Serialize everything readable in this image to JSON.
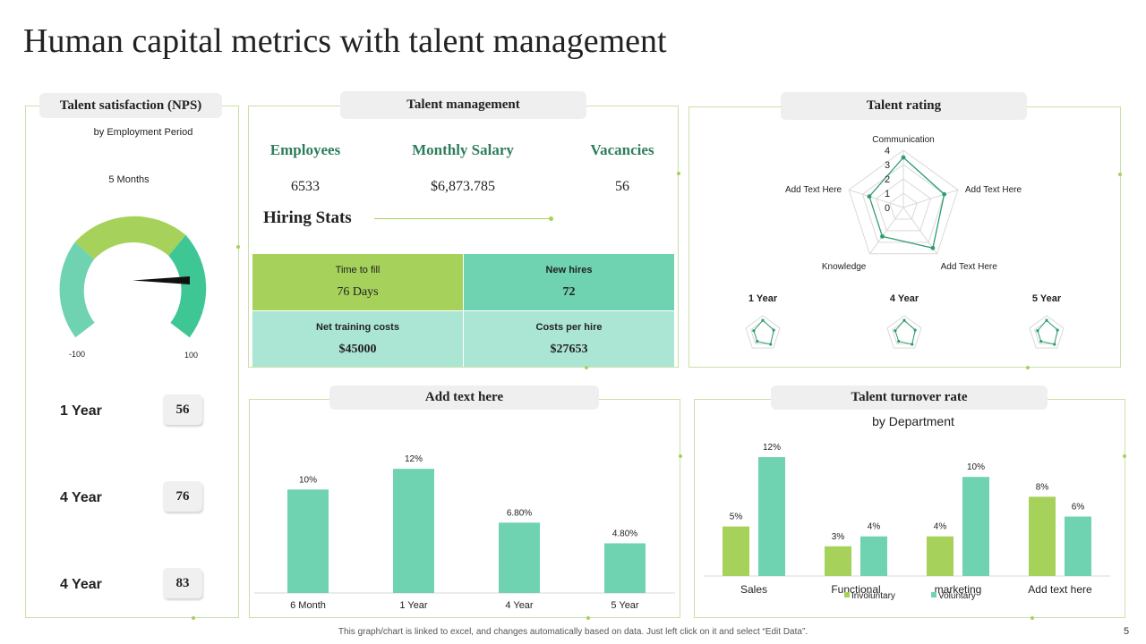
{
  "title": "Human capital metrics with talent management",
  "colors": {
    "green": "#a6d15a",
    "teal": "#6fd3b1",
    "light_teal": "#abe5d3",
    "dark_green": "#2e7d5b",
    "border": "#c9e0a8"
  },
  "nps": {
    "title": "Talent satisfaction (NPS)",
    "subtitle": "by Employment  Period",
    "gauge_label": "5 Months",
    "min_label": "-100",
    "max_label": "100",
    "years": [
      {
        "label": "1 Year",
        "value": "56"
      },
      {
        "label": "4 Year",
        "value": "76"
      },
      {
        "label": "4 Year",
        "value": "83"
      }
    ]
  },
  "talent_mgmt": {
    "title": "Talent management",
    "metrics": [
      {
        "head": "Employees",
        "value": "6533"
      },
      {
        "head": "Monthly Salary",
        "value": "$6,873.785"
      },
      {
        "head": "Vacancies",
        "value": "56"
      }
    ],
    "hiring_title": "Hiring Stats",
    "cells": [
      {
        "label": "Time to fill",
        "value": "76 Days"
      },
      {
        "label": "New hires",
        "value": "72"
      },
      {
        "label": "Net training costs",
        "value": "$45000"
      },
      {
        "label": "Costs per hire",
        "value": "$27653"
      }
    ]
  },
  "rating": {
    "title": "Talent rating",
    "axes": [
      "Communication",
      "Add Text Here",
      "Add Text Here",
      "Knowledge",
      "Add Text Here"
    ],
    "ticks": [
      "0",
      "1",
      "2",
      "3",
      "4"
    ],
    "mini_labels": [
      "1 Year",
      "4 Year",
      "5 Year"
    ]
  },
  "turnover": {
    "title": "Talent turnover rate",
    "subtitle": "by Department"
  },
  "bar_panel": {
    "title": "Add text here"
  },
  "chart_data": [
    {
      "type": "radar",
      "title": "Talent rating",
      "categories": [
        "Communication",
        "Add Text Here",
        "Add Text Here",
        "Knowledge",
        "Add Text Here"
      ],
      "values": [
        3.5,
        3,
        3.5,
        2.5,
        2.5
      ],
      "rmax": 4
    },
    {
      "type": "bar",
      "title": "Add text here",
      "categories": [
        "6 Month",
        "1 Year",
        "4 Year",
        "5 Year"
      ],
      "values": [
        10,
        12,
        6.8,
        4.8
      ],
      "value_labels": [
        "10%",
        "12%",
        "6.80%",
        "4.80%"
      ],
      "ylim": [
        0,
        14
      ]
    },
    {
      "type": "bar",
      "title": "Talent turnover rate",
      "subtitle": "by Department",
      "categories": [
        "Sales",
        "Functional",
        "marketing",
        "Add text here"
      ],
      "series": [
        {
          "name": "Involuntary",
          "values": [
            5,
            3,
            4,
            8
          ],
          "labels": [
            "5%",
            "3%",
            "4%",
            "8%"
          ]
        },
        {
          "name": "Voluntary",
          "values": [
            12,
            4,
            10,
            6
          ],
          "labels": [
            "12%",
            "4%",
            "10%",
            "6%"
          ]
        }
      ],
      "ylim": [
        0,
        13
      ]
    },
    {
      "type": "gauge",
      "title": "Talent satisfaction (NPS)",
      "min": -100,
      "max": 100,
      "value": 100
    }
  ],
  "footer": {
    "note": "This graph/chart is linked to excel, and changes automatically based on data. Just left click on it and select “Edit Data”.",
    "page": "5"
  }
}
